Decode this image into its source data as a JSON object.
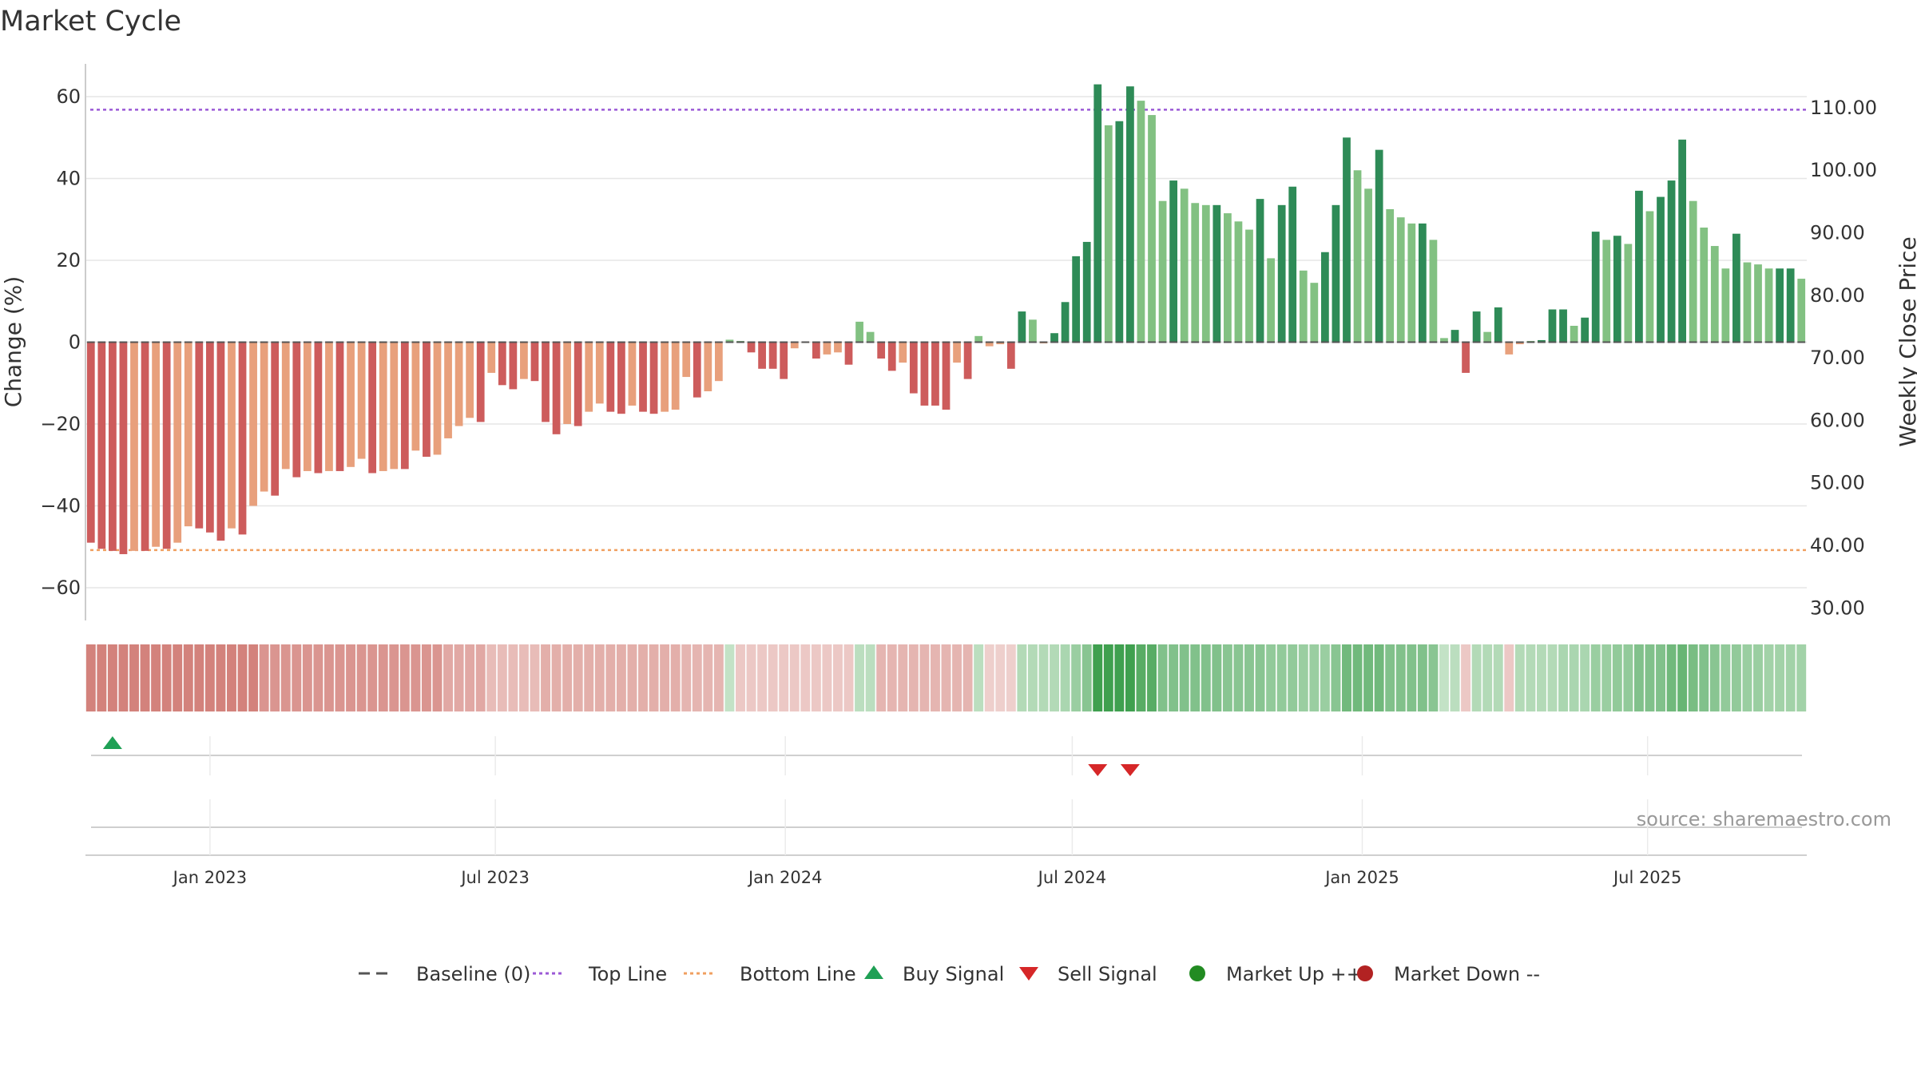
{
  "title": "Market Cycle",
  "source": "source: sharemaestro.com",
  "colors": {
    "grid": "#e6e6e6",
    "axis": "#cccccc",
    "text": "#333333",
    "top_line": "#9b59d6",
    "bottom_line": "#f0a060",
    "baseline": "#555555",
    "buy": "#1fa055",
    "sell": "#d62728",
    "market_up": "#228b22",
    "market_down": "#b22222",
    "up_strong": "#2e8b57",
    "up_light": "#82c182",
    "down_strong": "#cd5c5c",
    "down_light": "#e8a07c"
  },
  "chart_data": {
    "type": "bar",
    "title": "Market Cycle",
    "y_left": {
      "label": "Change (%)",
      "ticks": [
        60,
        40,
        20,
        0,
        -20,
        -40,
        -60
      ],
      "tick_labels": [
        "60",
        "40",
        "20",
        "0",
        "−20",
        "−40",
        "−60"
      ],
      "range": [
        -68,
        68
      ]
    },
    "y_right": {
      "label": "Weekly Close Price",
      "ticks": [
        110,
        100,
        90,
        80,
        70,
        60,
        50,
        40,
        30
      ],
      "tick_labels": [
        "110.00",
        "100.00",
        "90.00",
        "80.00",
        "70.00",
        "60.00",
        "50.00",
        "40.00",
        "30.00"
      ],
      "range": [
        28,
        117
      ]
    },
    "x_start": "2022-10-14",
    "x_end": "2025-10-10",
    "date_ticks": [
      {
        "date": "2023-01-01",
        "label": "Jan 2023"
      },
      {
        "date": "2023-07-01",
        "label": "Jul 2023"
      },
      {
        "date": "2024-01-01",
        "label": "Jan 2024"
      },
      {
        "date": "2024-07-01",
        "label": "Jul 2024"
      },
      {
        "date": "2025-01-01",
        "label": "Jan 2025"
      },
      {
        "date": "2025-07-01",
        "label": "Jul 2025"
      }
    ],
    "top_line": 56.8,
    "bottom_line": -50.8,
    "baseline": 0,
    "values": [
      -49,
      -50.5,
      -51,
      -51.8,
      -51,
      -51,
      -50,
      -50.5,
      -49,
      -45,
      -45.5,
      -46.5,
      -48.5,
      -45.5,
      -47,
      -40,
      -36.5,
      -37.5,
      -31,
      -33,
      -31.5,
      -32,
      -31.5,
      -31.5,
      -30.5,
      -28.5,
      -32,
      -31.5,
      -31,
      -31,
      -26.5,
      -28,
      -27.5,
      -23.5,
      -20.5,
      -18.5,
      -19.5,
      -7.5,
      -10.5,
      -11.5,
      -9,
      -9.5,
      -19.5,
      -22.5,
      -20,
      -20.5,
      -17,
      -15,
      -17,
      -17.5,
      -15.5,
      -17,
      -17.5,
      -17,
      -16.5,
      -8.5,
      -13.5,
      -12,
      -9.5,
      0.6,
      0.3,
      -2.5,
      -6.5,
      -6.5,
      -9,
      -1.5,
      -0.2,
      -4,
      -3,
      -2.5,
      -5.5,
      5,
      2.5,
      -4,
      -7,
      -5,
      -12.5,
      -15.5,
      -15.5,
      -16.5,
      -5,
      -9,
      1.5,
      -1,
      -0.5,
      -6.5,
      7.5,
      5.5,
      -0.3,
      2.2,
      9.8,
      21,
      24.5,
      63,
      53,
      54,
      62.5,
      59,
      55.5,
      34.5,
      39.5,
      37.5,
      34,
      33.5,
      33.5,
      31.5,
      29.5,
      27.5,
      35,
      20.5,
      33.5,
      38,
      17.5,
      14.5,
      22,
      33.5,
      50,
      42,
      37.5,
      47,
      32.5,
      30.5,
      29,
      29,
      25,
      1,
      3,
      -7.5,
      7.5,
      2.5,
      8.5,
      -3,
      -0.5,
      0.3,
      0.5,
      8,
      8,
      4,
      6,
      27,
      25,
      26,
      24,
      37,
      32,
      35.5,
      39.5,
      49.5,
      34.5,
      28,
      23.5,
      18,
      26.5,
      19.5,
      19,
      18,
      18,
      18,
      15.5
    ],
    "strength_band": [
      -0.75,
      -0.75,
      -0.75,
      -0.75,
      -0.75,
      -0.75,
      -0.75,
      -0.75,
      -0.75,
      -0.75,
      -0.75,
      -0.75,
      -0.75,
      -0.75,
      -0.75,
      -0.75,
      -0.6,
      -0.6,
      -0.6,
      -0.6,
      -0.6,
      -0.6,
      -0.6,
      -0.6,
      -0.6,
      -0.6,
      -0.6,
      -0.6,
      -0.6,
      -0.6,
      -0.6,
      -0.6,
      -0.6,
      -0.45,
      -0.45,
      -0.45,
      -0.45,
      -0.3,
      -0.3,
      -0.3,
      -0.3,
      -0.3,
      -0.4,
      -0.4,
      -0.4,
      -0.4,
      -0.4,
      -0.4,
      -0.4,
      -0.4,
      -0.4,
      -0.4,
      -0.4,
      -0.4,
      -0.4,
      -0.35,
      -0.35,
      -0.35,
      -0.35,
      0.2,
      -0.2,
      -0.2,
      -0.2,
      -0.2,
      -0.2,
      -0.2,
      -0.2,
      -0.2,
      -0.2,
      -0.2,
      -0.2,
      0.25,
      0.25,
      -0.35,
      -0.35,
      -0.35,
      -0.35,
      -0.35,
      -0.35,
      -0.35,
      -0.35,
      -0.35,
      0.25,
      -0.15,
      -0.15,
      -0.15,
      0.3,
      0.3,
      0.3,
      0.3,
      0.35,
      0.45,
      0.55,
      1,
      1,
      1,
      1,
      0.85,
      0.85,
      0.6,
      0.6,
      0.6,
      0.6,
      0.6,
      0.6,
      0.55,
      0.55,
      0.55,
      0.55,
      0.5,
      0.5,
      0.5,
      0.45,
      0.45,
      0.45,
      0.55,
      0.7,
      0.7,
      0.7,
      0.7,
      0.6,
      0.6,
      0.6,
      0.6,
      0.55,
      0.2,
      0.25,
      -0.2,
      0.3,
      0.3,
      0.3,
      -0.2,
      0.3,
      0.3,
      0.3,
      0.3,
      0.35,
      0.35,
      0.35,
      0.45,
      0.45,
      0.5,
      0.5,
      0.6,
      0.6,
      0.6,
      0.7,
      0.75,
      0.65,
      0.6,
      0.55,
      0.5,
      0.5,
      0.45,
      0.45,
      0.4,
      0.4,
      0.4,
      0.4
    ],
    "buy_signals": [
      2
    ],
    "sell_signals": [
      93,
      96
    ]
  },
  "legend": [
    {
      "key": "baseline",
      "label": "Baseline (0)"
    },
    {
      "key": "top_line",
      "label": "Top Line"
    },
    {
      "key": "bottom_line",
      "label": "Bottom Line"
    },
    {
      "key": "buy",
      "label": "Buy Signal"
    },
    {
      "key": "sell",
      "label": "Sell Signal"
    },
    {
      "key": "market_up",
      "label": "Market Up ++"
    },
    {
      "key": "market_down",
      "label": "Market Down --"
    }
  ]
}
